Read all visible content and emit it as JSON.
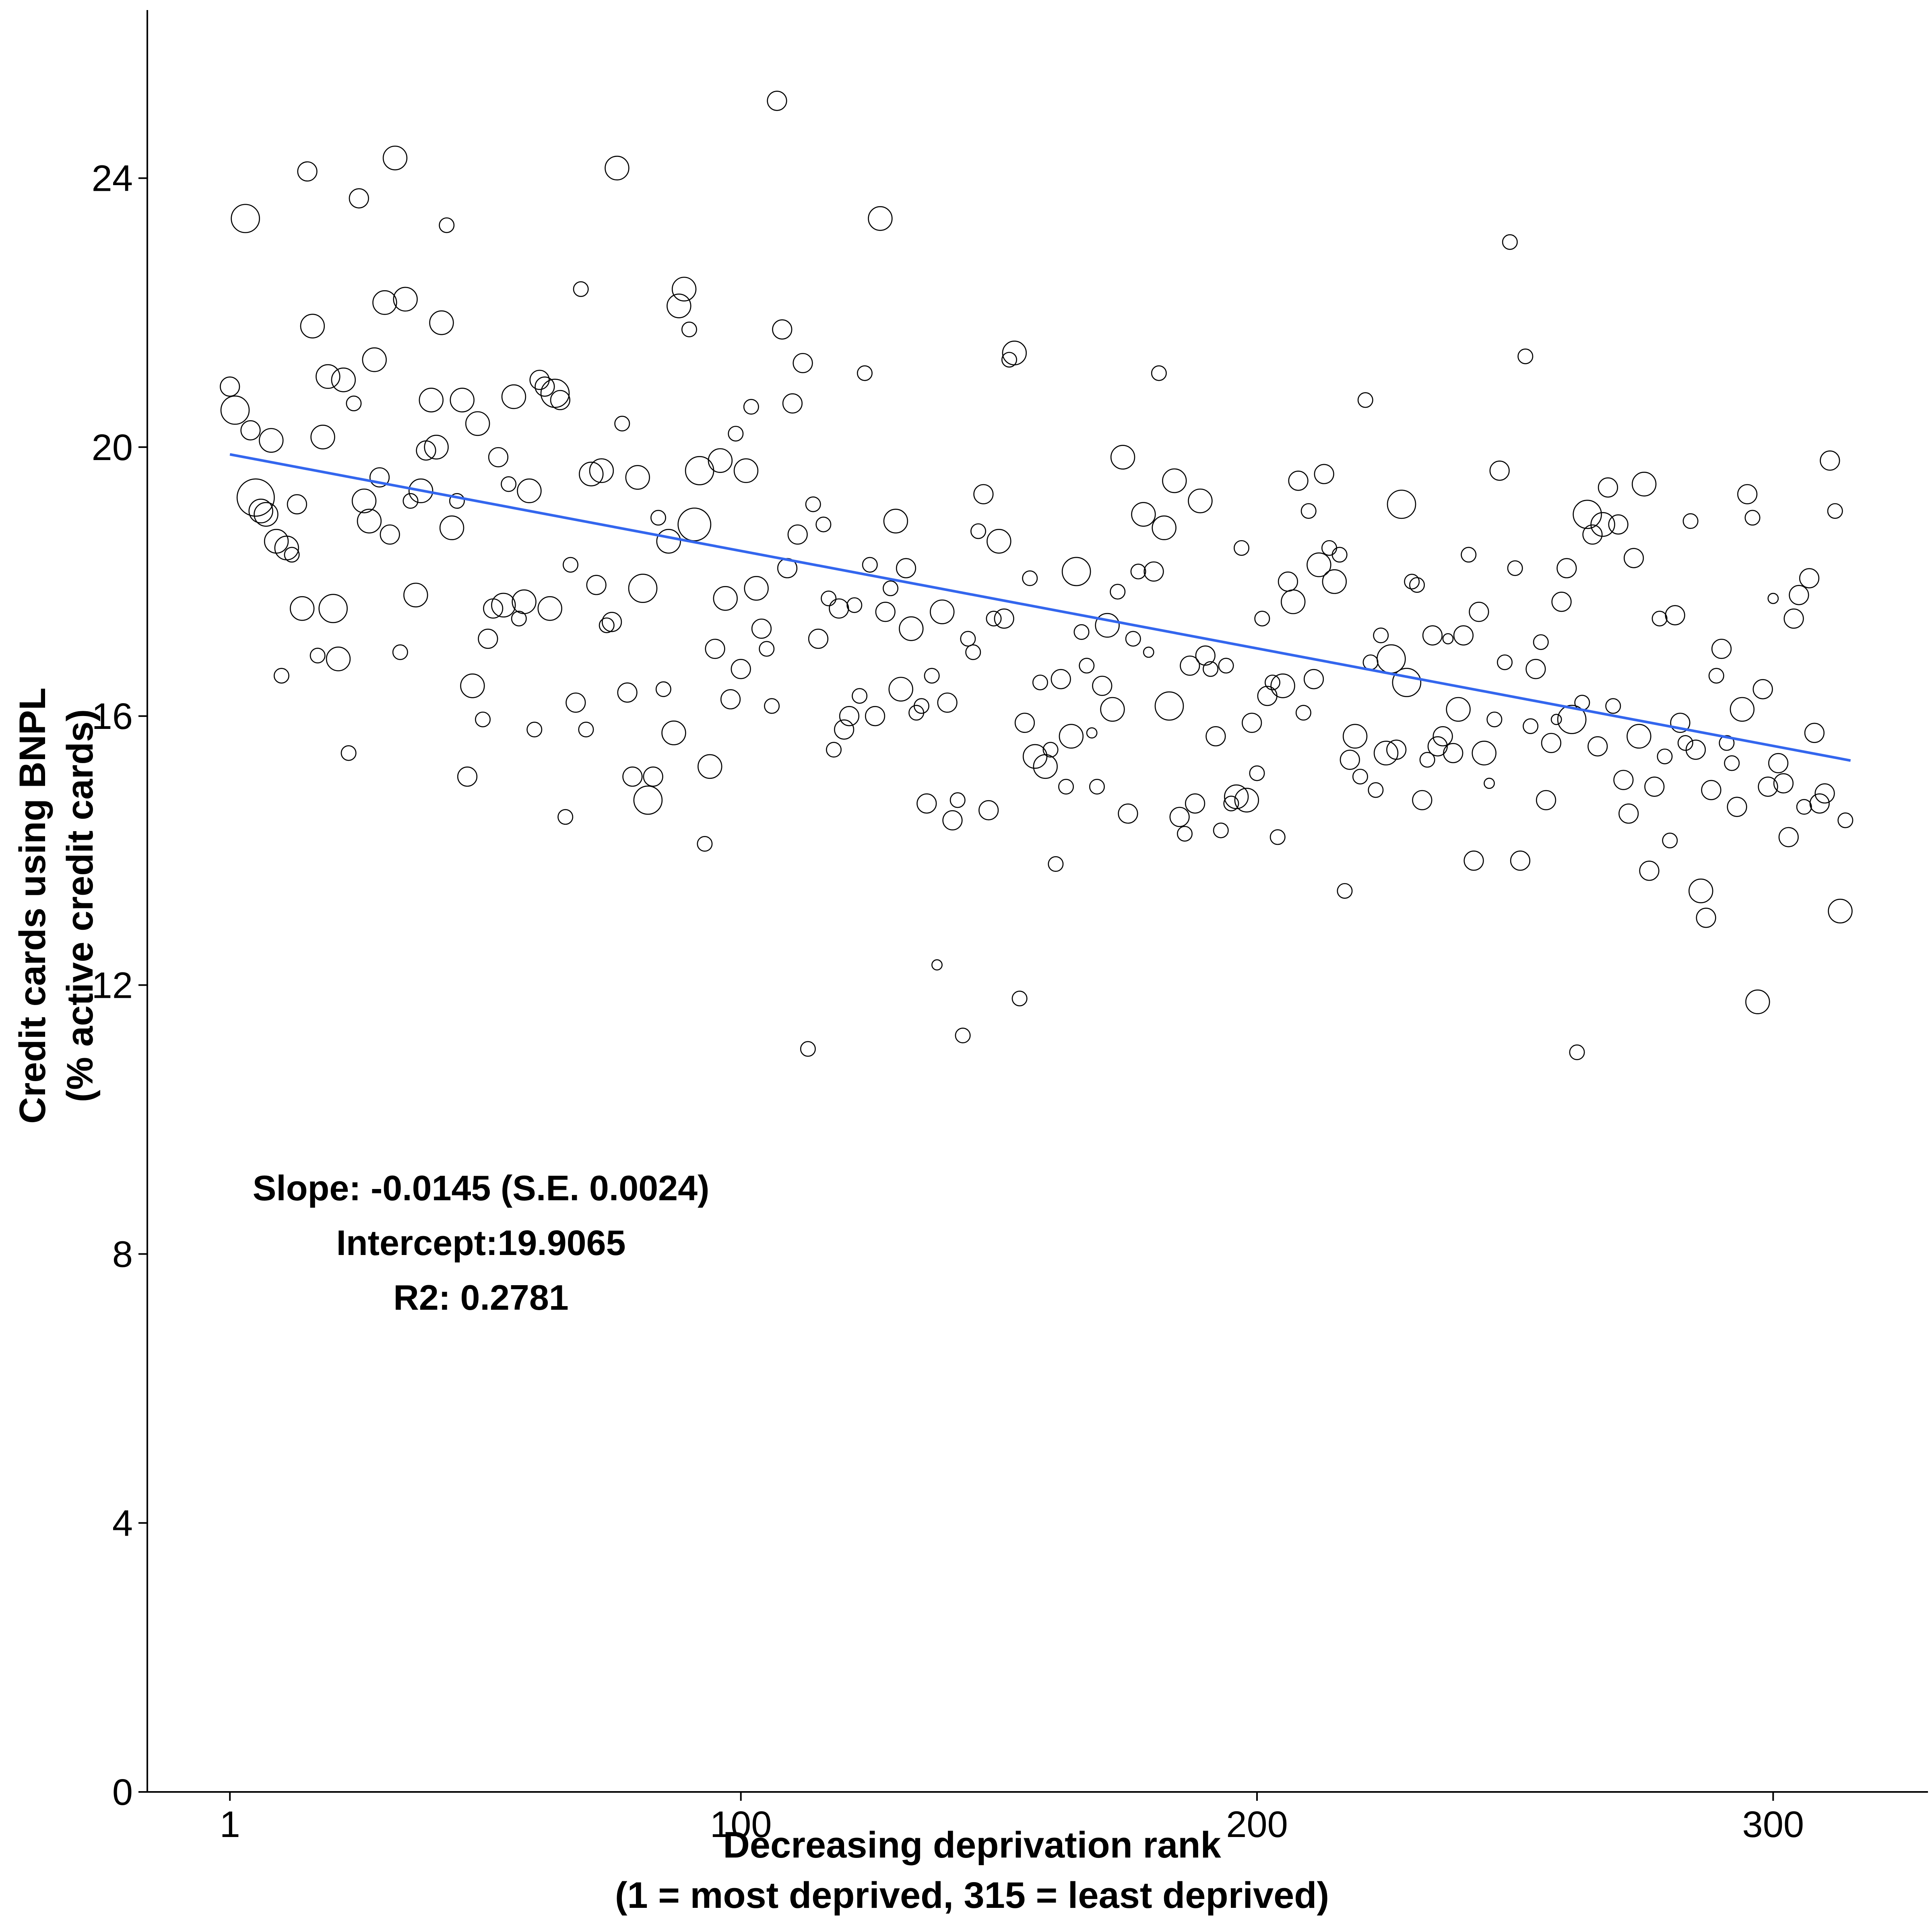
{
  "chart_data": {
    "type": "scatter",
    "title": "",
    "xlabel_line1": "Decreasing deprivation rank",
    "xlabel_line2": "(1 = most deprived, 315 = least deprived)",
    "ylabel_line1": "Credit cards using BNPL",
    "ylabel_line2": "(% active credit cards)",
    "xlim": [
      -15,
      330
    ],
    "ylim": [
      0,
      26.5
    ],
    "x_ticks": [
      1,
      100,
      200,
      300
    ],
    "x_tick_labels": [
      "1",
      "100",
      "200",
      "300"
    ],
    "y_ticks": [
      0,
      4,
      8,
      12,
      16,
      20,
      24
    ],
    "y_tick_labels": [
      "0",
      "4",
      "8",
      "12",
      "16",
      "20",
      "24"
    ],
    "grid": false,
    "fit_line": {
      "slope": -0.0145,
      "intercept": 19.9065,
      "x_range": [
        1,
        315
      ],
      "color": "#3366ee"
    },
    "annotations": {
      "slope": "Slope: -0.0145 (S.E. 0.0024)",
      "intercept": "Intercept:19.9065",
      "r2": "R2: 0.2781"
    },
    "marker_note": "hollow circles; size column is relative point size (1 = smallest)",
    "points": [
      [
        1,
        20.9,
        3
      ],
      [
        2,
        20.55,
        5
      ],
      [
        4,
        23.4,
        5
      ],
      [
        5,
        20.25,
        3
      ],
      [
        6,
        19.25,
        7
      ],
      [
        7,
        19.05,
        4
      ],
      [
        8,
        19.0,
        4
      ],
      [
        9,
        20.1,
        4
      ],
      [
        10,
        18.6,
        4
      ],
      [
        11,
        16.6,
        2
      ],
      [
        12,
        18.5,
        4
      ],
      [
        13,
        18.4,
        2
      ],
      [
        14,
        19.15,
        3
      ],
      [
        15,
        17.6,
        4
      ],
      [
        16,
        24.1,
        3
      ],
      [
        17,
        21.8,
        4
      ],
      [
        18,
        16.9,
        2
      ],
      [
        19,
        20.15,
        4
      ],
      [
        20,
        21.05,
        4
      ],
      [
        21,
        17.6,
        5
      ],
      [
        22,
        16.85,
        4
      ],
      [
        23,
        21.0,
        4
      ],
      [
        24,
        15.45,
        2
      ],
      [
        25,
        20.65,
        2
      ],
      [
        26,
        23.7,
        3
      ],
      [
        27,
        19.2,
        4
      ],
      [
        28,
        18.9,
        4
      ],
      [
        29,
        21.3,
        4
      ],
      [
        30,
        19.55,
        3
      ],
      [
        31,
        22.15,
        4
      ],
      [
        32,
        18.7,
        3
      ],
      [
        33,
        24.3,
        4
      ],
      [
        34,
        16.95,
        2
      ],
      [
        35,
        22.2,
        4
      ],
      [
        36,
        19.2,
        2
      ],
      [
        37,
        17.8,
        4
      ],
      [
        38,
        19.35,
        4
      ],
      [
        39,
        19.95,
        3
      ],
      [
        40,
        20.7,
        4
      ],
      [
        41,
        20.0,
        4
      ],
      [
        42,
        21.85,
        4
      ],
      [
        43,
        23.3,
        2
      ],
      [
        44,
        18.8,
        4
      ],
      [
        45,
        19.2,
        2
      ],
      [
        46,
        20.7,
        4
      ],
      [
        47,
        15.1,
        3
      ],
      [
        48,
        16.45,
        4
      ],
      [
        49,
        20.35,
        4
      ],
      [
        50,
        15.95,
        2
      ],
      [
        51,
        17.15,
        3
      ],
      [
        52,
        17.6,
        3
      ],
      [
        53,
        19.85,
        3
      ],
      [
        54,
        17.65,
        4
      ],
      [
        55,
        19.45,
        2
      ],
      [
        56,
        20.75,
        4
      ],
      [
        57,
        17.45,
        2
      ],
      [
        58,
        17.7,
        4
      ],
      [
        59,
        19.35,
        4
      ],
      [
        60,
        15.8,
        2
      ],
      [
        61,
        21.0,
        3
      ],
      [
        62,
        20.9,
        3
      ],
      [
        63,
        17.6,
        4
      ],
      [
        64,
        20.8,
        5
      ],
      [
        65,
        20.7,
        3
      ],
      [
        66,
        14.5,
        2
      ],
      [
        67,
        18.25,
        2
      ],
      [
        68,
        16.2,
        3
      ],
      [
        69,
        22.35,
        2
      ],
      [
        70,
        15.8,
        2
      ],
      [
        71,
        19.6,
        4
      ],
      [
        72,
        17.95,
        3
      ],
      [
        73,
        19.65,
        4
      ],
      [
        74,
        17.35,
        2
      ],
      [
        75,
        17.4,
        3
      ],
      [
        76,
        24.15,
        4
      ],
      [
        77,
        20.35,
        2
      ],
      [
        78,
        16.35,
        3
      ],
      [
        79,
        15.1,
        3
      ],
      [
        80,
        19.55,
        4
      ],
      [
        81,
        17.9,
        5
      ],
      [
        82,
        14.75,
        5
      ],
      [
        83,
        15.1,
        3
      ],
      [
        84,
        18.95,
        2
      ],
      [
        85,
        16.4,
        2
      ],
      [
        86,
        18.6,
        4
      ],
      [
        87,
        15.75,
        4
      ],
      [
        88,
        22.1,
        4
      ],
      [
        89,
        22.35,
        4
      ],
      [
        90,
        21.75,
        2
      ],
      [
        91,
        18.85,
        6
      ],
      [
        92,
        19.65,
        5
      ],
      [
        93,
        14.1,
        2
      ],
      [
        94,
        15.25,
        4
      ],
      [
        95,
        17.0,
        3
      ],
      [
        96,
        19.8,
        4
      ],
      [
        97,
        17.75,
        4
      ],
      [
        98,
        16.25,
        3
      ],
      [
        99,
        20.2,
        2
      ],
      [
        100,
        16.7,
        3
      ],
      [
        101,
        19.65,
        4
      ],
      [
        102,
        20.6,
        2
      ],
      [
        103,
        17.9,
        4
      ],
      [
        104,
        17.3,
        3
      ],
      [
        105,
        17.0,
        2
      ],
      [
        106,
        16.15,
        2
      ],
      [
        107,
        25.15,
        3
      ],
      [
        108,
        21.75,
        3
      ],
      [
        109,
        18.2,
        3
      ],
      [
        110,
        20.65,
        3
      ],
      [
        111,
        18.7,
        3
      ],
      [
        112,
        21.25,
        3
      ],
      [
        113,
        11.05,
        2
      ],
      [
        114,
        19.15,
        2
      ],
      [
        115,
        17.15,
        3
      ],
      [
        116,
        18.85,
        2
      ],
      [
        117,
        17.75,
        2
      ],
      [
        118,
        15.5,
        2
      ],
      [
        119,
        17.6,
        3
      ],
      [
        120,
        15.8,
        3
      ],
      [
        121,
        16.0,
        3
      ],
      [
        122,
        17.65,
        2
      ],
      [
        123,
        16.3,
        2
      ],
      [
        124,
        21.1,
        2
      ],
      [
        125,
        18.25,
        2
      ],
      [
        126,
        16.0,
        3
      ],
      [
        127,
        23.4,
        4
      ],
      [
        128,
        17.55,
        3
      ],
      [
        129,
        17.9,
        2
      ],
      [
        130,
        18.9,
        4
      ],
      [
        131,
        16.4,
        4
      ],
      [
        132,
        18.2,
        3
      ],
      [
        133,
        17.3,
        4
      ],
      [
        134,
        16.05,
        2
      ],
      [
        135,
        16.15,
        2
      ],
      [
        136,
        14.7,
        3
      ],
      [
        137,
        16.6,
        2
      ],
      [
        138,
        12.3,
        1
      ],
      [
        139,
        17.55,
        4
      ],
      [
        140,
        16.2,
        3
      ],
      [
        141,
        14.45,
        3
      ],
      [
        142,
        14.75,
        2
      ],
      [
        143,
        11.25,
        2
      ],
      [
        144,
        17.15,
        2
      ],
      [
        145,
        16.95,
        2
      ],
      [
        146,
        18.75,
        2
      ],
      [
        147,
        19.3,
        3
      ],
      [
        148,
        14.6,
        3
      ],
      [
        149,
        17.45,
        2
      ],
      [
        150,
        18.6,
        4
      ],
      [
        151,
        17.45,
        3
      ],
      [
        152,
        21.3,
        2
      ],
      [
        153,
        21.4,
        4
      ],
      [
        154,
        11.8,
        2
      ],
      [
        155,
        15.9,
        3
      ],
      [
        156,
        18.05,
        2
      ],
      [
        157,
        15.4,
        4
      ],
      [
        158,
        16.5,
        2
      ],
      [
        159,
        15.25,
        4
      ],
      [
        160,
        15.5,
        2
      ],
      [
        161,
        13.8,
        2
      ],
      [
        162,
        16.55,
        3
      ],
      [
        163,
        14.95,
        2
      ],
      [
        164,
        15.7,
        4
      ],
      [
        165,
        18.15,
        5
      ],
      [
        166,
        17.25,
        2
      ],
      [
        167,
        16.75,
        2
      ],
      [
        168,
        15.75,
        1
      ],
      [
        169,
        14.95,
        2
      ],
      [
        170,
        16.45,
        3
      ],
      [
        171,
        17.35,
        4
      ],
      [
        172,
        16.1,
        4
      ],
      [
        173,
        17.85,
        2
      ],
      [
        174,
        19.85,
        4
      ],
      [
        175,
        14.55,
        3
      ],
      [
        176,
        17.15,
        2
      ],
      [
        177,
        18.15,
        2
      ],
      [
        178,
        19.0,
        4
      ],
      [
        179,
        16.95,
        1
      ],
      [
        180,
        18.15,
        3
      ],
      [
        181,
        21.1,
        2
      ],
      [
        182,
        18.8,
        4
      ],
      [
        183,
        16.15,
        5
      ],
      [
        184,
        19.5,
        4
      ],
      [
        185,
        14.5,
        3
      ],
      [
        186,
        14.25,
        2
      ],
      [
        187,
        16.75,
        3
      ],
      [
        188,
        14.7,
        3
      ],
      [
        189,
        19.2,
        4
      ],
      [
        190,
        16.9,
        3
      ],
      [
        191,
        16.7,
        2
      ],
      [
        192,
        15.7,
        3
      ],
      [
        193,
        14.3,
        2
      ],
      [
        194,
        16.75,
        2
      ],
      [
        195,
        14.7,
        2
      ],
      [
        196,
        14.8,
        4
      ],
      [
        197,
        18.5,
        2
      ],
      [
        198,
        14.75,
        4
      ],
      [
        199,
        15.9,
        3
      ],
      [
        200,
        15.15,
        2
      ],
      [
        201,
        17.45,
        2
      ],
      [
        202,
        16.3,
        3
      ],
      [
        203,
        16.5,
        2
      ],
      [
        204,
        14.2,
        2
      ],
      [
        205,
        16.45,
        4
      ],
      [
        206,
        18.0,
        3
      ],
      [
        207,
        17.7,
        4
      ],
      [
        208,
        19.5,
        3
      ],
      [
        209,
        16.05,
        2
      ],
      [
        210,
        19.05,
        2
      ],
      [
        211,
        16.55,
        3
      ],
      [
        212,
        18.25,
        4
      ],
      [
        213,
        19.6,
        3
      ],
      [
        214,
        18.5,
        2
      ],
      [
        215,
        18.0,
        4
      ],
      [
        216,
        18.4,
        2
      ],
      [
        217,
        13.4,
        2
      ],
      [
        218,
        15.35,
        3
      ],
      [
        219,
        15.7,
        4
      ],
      [
        220,
        15.1,
        2
      ],
      [
        221,
        20.7,
        2
      ],
      [
        222,
        16.8,
        2
      ],
      [
        223,
        14.9,
        2
      ],
      [
        224,
        17.2,
        2
      ],
      [
        225,
        15.45,
        4
      ],
      [
        226,
        16.85,
        5
      ],
      [
        227,
        15.5,
        3
      ],
      [
        228,
        19.15,
        5
      ],
      [
        229,
        16.5,
        5
      ],
      [
        230,
        18.0,
        2
      ],
      [
        231,
        17.95,
        2
      ],
      [
        232,
        14.75,
        3
      ],
      [
        233,
        15.35,
        2
      ],
      [
        234,
        17.2,
        3
      ],
      [
        235,
        15.55,
        3
      ],
      [
        236,
        15.7,
        3
      ],
      [
        237,
        17.15,
        1
      ],
      [
        238,
        15.45,
        3
      ],
      [
        239,
        16.1,
        4
      ],
      [
        240,
        17.2,
        3
      ],
      [
        241,
        18.4,
        2
      ],
      [
        242,
        13.85,
        3
      ],
      [
        243,
        17.55,
        3
      ],
      [
        244,
        15.45,
        4
      ],
      [
        245,
        15.0,
        1
      ],
      [
        246,
        15.95,
        2
      ],
      [
        247,
        19.65,
        3
      ],
      [
        248,
        16.8,
        2
      ],
      [
        249,
        23.05,
        2
      ],
      [
        250,
        18.2,
        2
      ],
      [
        251,
        13.85,
        3
      ],
      [
        252,
        21.35,
        2
      ],
      [
        253,
        15.85,
        2
      ],
      [
        254,
        16.7,
        3
      ],
      [
        255,
        17.1,
        2
      ],
      [
        256,
        14.75,
        3
      ],
      [
        257,
        15.6,
        3
      ],
      [
        258,
        15.95,
        1
      ],
      [
        259,
        17.7,
        3
      ],
      [
        260,
        18.2,
        3
      ],
      [
        261,
        15.95,
        5
      ],
      [
        262,
        11.0,
        2
      ],
      [
        263,
        16.2,
        2
      ],
      [
        264,
        19.0,
        5
      ],
      [
        265,
        18.7,
        3
      ],
      [
        266,
        15.55,
        3
      ],
      [
        267,
        18.85,
        4
      ],
      [
        268,
        19.4,
        3
      ],
      [
        269,
        16.15,
        2
      ],
      [
        270,
        18.85,
        3
      ],
      [
        271,
        15.05,
        3
      ],
      [
        272,
        14.55,
        3
      ],
      [
        273,
        18.35,
        3
      ],
      [
        274,
        15.7,
        4
      ],
      [
        275,
        19.45,
        4
      ],
      [
        276,
        13.7,
        3
      ],
      [
        277,
        14.95,
        3
      ],
      [
        278,
        17.45,
        2
      ],
      [
        279,
        15.4,
        2
      ],
      [
        280,
        14.15,
        2
      ],
      [
        281,
        17.5,
        3
      ],
      [
        282,
        15.9,
        3
      ],
      [
        283,
        15.6,
        2
      ],
      [
        284,
        18.9,
        2
      ],
      [
        285,
        15.5,
        3
      ],
      [
        286,
        13.4,
        4
      ],
      [
        287,
        13.0,
        3
      ],
      [
        288,
        14.9,
        3
      ],
      [
        289,
        16.6,
        2
      ],
      [
        290,
        17.0,
        3
      ],
      [
        291,
        15.6,
        2
      ],
      [
        292,
        15.3,
        2
      ],
      [
        293,
        14.65,
        3
      ],
      [
        294,
        16.1,
        4
      ],
      [
        295,
        19.3,
        3
      ],
      [
        296,
        18.95,
        2
      ],
      [
        297,
        11.75,
        4
      ],
      [
        298,
        16.4,
        3
      ],
      [
        299,
        14.95,
        3
      ],
      [
        300,
        17.75,
        1
      ],
      [
        301,
        15.3,
        3
      ],
      [
        302,
        15.0,
        3
      ],
      [
        303,
        14.2,
        3
      ],
      [
        304,
        17.45,
        3
      ],
      [
        305,
        17.8,
        3
      ],
      [
        306,
        14.65,
        2
      ],
      [
        307,
        18.05,
        3
      ],
      [
        308,
        15.75,
        3
      ],
      [
        309,
        14.7,
        3
      ],
      [
        310,
        14.85,
        3
      ],
      [
        311,
        19.8,
        3
      ],
      [
        312,
        19.05,
        2
      ],
      [
        313,
        13.1,
        4
      ],
      [
        314,
        14.45,
        2
      ]
    ]
  }
}
